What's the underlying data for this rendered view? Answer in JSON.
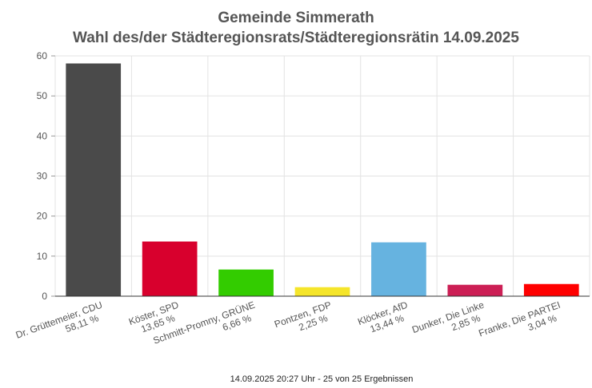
{
  "chart_data": {
    "type": "bar",
    "title": "Gemeinde Simmerath",
    "subtitle": "Wahl des/der Städteregionsrats/Städteregionsrätin 14.09.2025",
    "categories": [
      "Dr. Grüttemeier, CDU",
      "Köster, SPD",
      "Schmitt-Promny, GRÜNE",
      "Pontzen, FDP",
      "Klöcker, AfD",
      "Dunker, Die Linke",
      "Franke, Die PARTEI"
    ],
    "percent_labels": [
      "58,11 %",
      "13,65 %",
      "6,66 %",
      "2,25 %",
      "13,44 %",
      "2,85 %",
      "3,04 %"
    ],
    "values": [
      58.11,
      13.65,
      6.66,
      2.25,
      13.44,
      2.85,
      3.04
    ],
    "colors": [
      "#4a4a4a",
      "#d8002d",
      "#33cc00",
      "#f5e52a",
      "#66b3e0",
      "#cc1f55",
      "#ff0000"
    ],
    "yticks": [
      "0",
      "10",
      "20",
      "30",
      "40",
      "50",
      "60"
    ],
    "ylim": [
      0,
      60
    ],
    "grid": true,
    "footer": "14.09.2025 20:27 Uhr - 25 von 25 Ergebnissen"
  }
}
